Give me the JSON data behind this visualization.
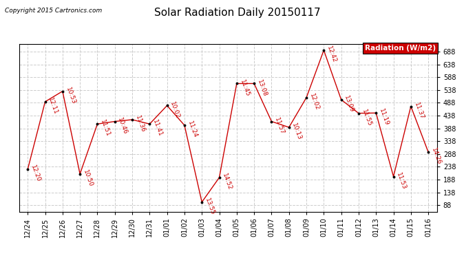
{
  "title": "Solar Radiation Daily 20150117",
  "copyright": "Copyright 2015 Cartronics.com",
  "legend_label": "Radiation (W/m2)",
  "legend_bg": "#cc0000",
  "dates": [
    "12/24",
    "12/25",
    "12/26",
    "12/27",
    "12/28",
    "12/29",
    "12/30",
    "12/31",
    "01/01",
    "01/02",
    "01/03",
    "01/04",
    "01/05",
    "01/06",
    "01/07",
    "01/08",
    "01/09",
    "01/10",
    "01/11",
    "01/12",
    "01/13",
    "01/14",
    "01/15",
    "01/16"
  ],
  "values": [
    228,
    492,
    533,
    210,
    405,
    415,
    422,
    405,
    477,
    400,
    100,
    196,
    563,
    563,
    415,
    392,
    508,
    693,
    500,
    447,
    448,
    200,
    474,
    295
  ],
  "time_labels": [
    "12:20",
    "12:11",
    "10:53",
    "10:50",
    "11:51",
    "10:46",
    "11:36",
    "11:41",
    "10:02",
    "11:24",
    "13:55",
    "14:52",
    "11:45",
    "13:08",
    "11:57",
    "10:13",
    "12:02",
    "12:42",
    "13:09",
    "11:55",
    "11:19",
    "11:53",
    "11:37",
    "14:26"
  ],
  "highlight_idx": 17,
  "line_color": "#cc0000",
  "marker_color": "#000000",
  "label_color": "#cc0000",
  "ylim_min": 63,
  "ylim_max": 718,
  "yticks": [
    88.0,
    138.0,
    188.0,
    238.0,
    288.0,
    338.0,
    388.0,
    438.0,
    488.0,
    538.0,
    588.0,
    638.0,
    688.0
  ],
  "grid_color": "#cccccc",
  "bg_color": "#ffffff",
  "title_fontsize": 11,
  "annot_fontsize": 6.5,
  "tick_fontsize": 7,
  "copyright_fontsize": 6.5
}
